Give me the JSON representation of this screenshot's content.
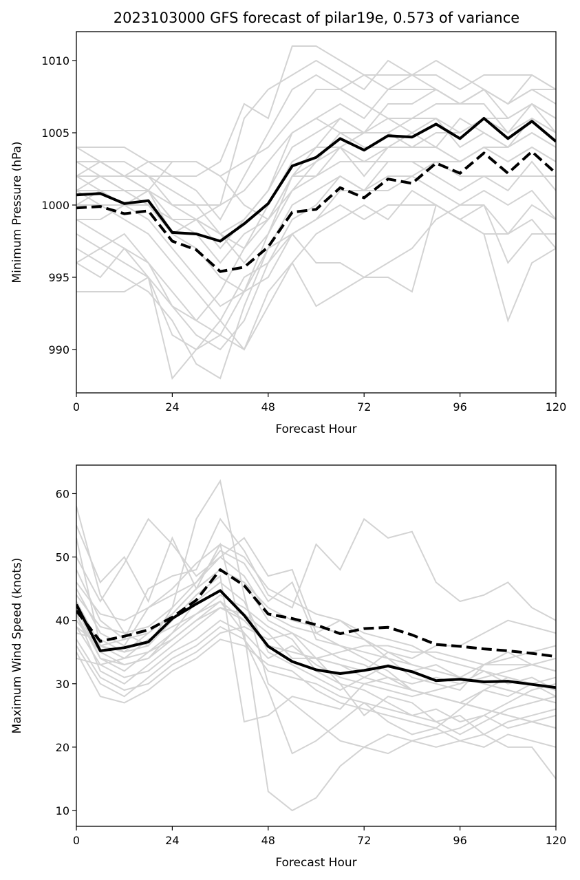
{
  "figure_title": "2023103000 GFS forecast of pilar19e, 0.573 of variance",
  "chart_data": [
    {
      "type": "line",
      "xlabel": "Forecast Hour",
      "ylabel": "Minimum Pressure (hPa)",
      "xlim": [
        0,
        120
      ],
      "ylim": [
        987,
        1012
      ],
      "xticks": [
        0,
        24,
        48,
        72,
        96,
        120
      ],
      "yticks": [
        990,
        995,
        1000,
        1005,
        1010
      ],
      "x": [
        0,
        6,
        12,
        18,
        24,
        30,
        36,
        42,
        48,
        54,
        60,
        66,
        72,
        78,
        84,
        90,
        96,
        102,
        108,
        114,
        120
      ],
      "highlight_series": [
        {
          "style": "solid",
          "color": "#000000",
          "values": [
            1000.7,
            1000.8,
            1000.1,
            1000.3,
            998.1,
            998.0,
            997.5,
            998.7,
            1000.1,
            1002.7,
            1003.3,
            1004.6,
            1003.8,
            1004.8,
            1004.7,
            1005.6,
            1004.6,
            1006.0,
            1004.6,
            1005.8,
            1004.4
          ]
        },
        {
          "style": "dashed",
          "color": "#000000",
          "values": [
            999.8,
            999.9,
            999.4,
            999.6,
            997.5,
            996.9,
            995.4,
            995.7,
            997.1,
            999.5,
            999.7,
            1001.2,
            1000.5,
            1001.8,
            1001.5,
            1002.9,
            1002.2,
            1003.6,
            1002.2,
            1003.7,
            1002.2
          ]
        }
      ],
      "member_color": "#d3d3d3",
      "members": [
        [
          1004,
          1004,
          1004,
          1003,
          1003,
          1003,
          1002,
          1003,
          1004,
          1006,
          1008,
          1008,
          1009,
          1009,
          1009,
          1009,
          1008,
          1009,
          1009,
          1009,
          1008
        ],
        [
          1003,
          1003,
          1002,
          1001,
          1000,
          999,
          997,
          999,
          1001,
          1005,
          1006,
          1007,
          1006,
          1008,
          1008,
          1008,
          1007,
          1008,
          1007,
          1008,
          1007
        ],
        [
          1002,
          1002,
          1001,
          1001,
          999,
          999,
          998,
          997,
          1000,
          1003,
          1004,
          1004,
          1005,
          1005,
          1006,
          1006,
          1005,
          1006,
          1006,
          1007,
          1006
        ],
        [
          1001,
          1000,
          1000,
          1001,
          999,
          998,
          996,
          998,
          999,
          1002,
          1002,
          1003,
          1003,
          1003,
          1003,
          1003,
          1002,
          1002,
          1002,
          1002,
          1002
        ],
        [
          1000,
          1001,
          1000,
          999,
          997,
          995,
          993,
          994,
          995,
          998,
          999,
          1001,
          1001,
          1002,
          1002,
          1003,
          1003,
          1004,
          1003,
          1004,
          1003
        ],
        [
          999,
          998,
          997,
          996,
          993,
          991,
          990,
          992,
          996,
          999,
          1000,
          1002,
          1001,
          1003,
          1003,
          1002,
          1001,
          1002,
          1001,
          1003,
          1001
        ],
        [
          998,
          997,
          998,
          996,
          994,
          992,
          991,
          994,
          997,
          998,
          999,
          1000,
          999,
          1000,
          1000,
          1000,
          999,
          998,
          998,
          999,
          997
        ],
        [
          996,
          995,
          997,
          995,
          991,
          990,
          991,
          990,
          994,
          996,
          993,
          994,
          995,
          995,
          994,
          1000,
          999,
          998,
          992,
          996,
          997
        ],
        [
          994,
          994,
          994,
          995,
          988,
          990,
          992,
          995,
          996,
          998,
          996,
          996,
          995,
          996,
          997,
          999,
          1000,
          1000,
          996,
          998,
          998
        ],
        [
          1002,
          1003,
          1002,
          1002,
          1000,
          1000,
          998,
          996,
          998,
          1001,
          1002,
          1004,
          1002,
          1004,
          1004,
          1004,
          1003,
          1004,
          1004,
          1005,
          1004
        ],
        [
          1003,
          1002,
          1002,
          1003,
          1002,
          1001,
          999,
          1002,
          1005,
          1008,
          1009,
          1008,
          1007,
          1006,
          1006,
          1007,
          1007,
          1008,
          1006,
          1007,
          1005
        ],
        [
          997,
          996,
          995,
          994,
          992,
          989,
          988,
          993,
          997,
          1000,
          1001,
          1002,
          1001,
          1001,
          1002,
          1001,
          1000,
          1001,
          1000,
          1001,
          999
        ],
        [
          1004,
          1003,
          1003,
          1002,
          1002,
          1002,
          1003,
          1007,
          1006,
          1011,
          1011,
          1010,
          1009,
          1008,
          1009,
          1008,
          1007,
          1008,
          1007,
          1008,
          1008
        ],
        [
          1001,
          1002,
          1002,
          1001,
          1003,
          1003,
          1002,
          1000,
          999,
          1001,
          1003,
          1005,
          1004,
          1004,
          1005,
          1004,
          1006,
          1005,
          1004,
          1006,
          1005
        ],
        [
          999,
          999,
          1000,
          1001,
          998,
          997,
          995,
          994,
          998,
          1002,
          1004,
          1006,
          1005,
          1007,
          1007,
          1008,
          1007,
          1007,
          1005,
          1007,
          1006
        ],
        [
          1000,
          1000,
          999,
          998,
          996,
          994,
          992,
          990,
          993,
          996,
          998,
          999,
          1000,
          999,
          1001,
          1000,
          999,
          1000,
          998,
          1000,
          999
        ],
        [
          1002,
          1001,
          1001,
          1000,
          999,
          999,
          998,
          999,
          1001,
          1004,
          1005,
          1006,
          1005,
          1006,
          1005,
          1006,
          1004,
          1005,
          1004,
          1005,
          1004
        ],
        [
          1003,
          1003,
          1002,
          1002,
          1001,
          1000,
          1000,
          1001,
          1003,
          1005,
          1006,
          1005,
          1005,
          1005,
          1004,
          1005,
          1005,
          1006,
          1005,
          1006,
          1005
        ],
        [
          996,
          997,
          996,
          995,
          993,
          992,
          994,
          997,
          999,
          1002,
          1003,
          1004,
          1003,
          1004,
          1004,
          1004,
          1003,
          1004,
          1003,
          1004,
          1003
        ],
        [
          1001,
          1001,
          1000,
          1000,
          998,
          999,
          1000,
          1006,
          1008,
          1009,
          1010,
          1009,
          1008,
          1010,
          1009,
          1010,
          1009,
          1008,
          1007,
          1009,
          1008
        ]
      ]
    },
    {
      "type": "line",
      "xlabel": "Forecast Hour",
      "ylabel": "Maximum Wind Speed (knots)",
      "xlim": [
        0,
        120
      ],
      "ylim": [
        7.5,
        64.5
      ],
      "xticks": [
        0,
        24,
        48,
        72,
        96,
        120
      ],
      "yticks": [
        10,
        20,
        30,
        40,
        50,
        60
      ],
      "x": [
        0,
        6,
        12,
        18,
        24,
        30,
        36,
        42,
        48,
        54,
        60,
        66,
        72,
        78,
        84,
        90,
        96,
        102,
        108,
        114,
        120
      ],
      "highlight_series": [
        {
          "style": "solid",
          "color": "#000000",
          "values": [
            42.5,
            35.2,
            35.7,
            36.6,
            40.3,
            42.6,
            44.7,
            40.8,
            35.9,
            33.5,
            32.2,
            31.6,
            32.1,
            32.8,
            31.9,
            30.5,
            30.7,
            30.3,
            30.4,
            29.9,
            29.4
          ]
        },
        {
          "style": "dashed",
          "color": "#000000",
          "values": [
            41.5,
            36.7,
            37.5,
            38.5,
            40.5,
            43.2,
            48.0,
            45.5,
            41.0,
            40.3,
            39.3,
            37.9,
            38.7,
            38.9,
            37.7,
            36.2,
            35.9,
            35.5,
            35.2,
            34.8,
            34.3
          ]
        }
      ],
      "member_color": "#d3d3d3",
      "members": [
        [
          58,
          44,
          38,
          36,
          42,
          56,
          62,
          44,
          30,
          27,
          24,
          21,
          20,
          22,
          21,
          20,
          21,
          22,
          24,
          25,
          26
        ],
        [
          55,
          46,
          50,
          43,
          53,
          45,
          52,
          37,
          29,
          19,
          21,
          24,
          27,
          24,
          22,
          23,
          26,
          29,
          28,
          30,
          31
        ],
        [
          50,
          43,
          49,
          56,
          52,
          47,
          50,
          53,
          47,
          48,
          38,
          40,
          37,
          34,
          31,
          30,
          29,
          33,
          35,
          33,
          32
        ],
        [
          48,
          40,
          37,
          45,
          47,
          48,
          56,
          51,
          44,
          42,
          52,
          48,
          56,
          53,
          54,
          46,
          43,
          44,
          46,
          42,
          40
        ],
        [
          45,
          38,
          36,
          42,
          44,
          46,
          51,
          49,
          43,
          46,
          37,
          36,
          34,
          32,
          29,
          28,
          27,
          26,
          25,
          24,
          23
        ],
        [
          43,
          36,
          34,
          37,
          39,
          41,
          44,
          42,
          39,
          37,
          32,
          30,
          29,
          27,
          25,
          24,
          22,
          24,
          26,
          27,
          28
        ],
        [
          42,
          34,
          32,
          35,
          38,
          43,
          46,
          43,
          35,
          33,
          31,
          29,
          31,
          33,
          32,
          33,
          31,
          33,
          34,
          35,
          36
        ],
        [
          41,
          32,
          30,
          33,
          36,
          39,
          42,
          40,
          36,
          35,
          34,
          33,
          32,
          35,
          34,
          36,
          36,
          38,
          40,
          39,
          38
        ],
        [
          40,
          35,
          33,
          34,
          38,
          41,
          43,
          38,
          13,
          10,
          12,
          17,
          20,
          19,
          21,
          22,
          23,
          25,
          27,
          29,
          30
        ],
        [
          39,
          33,
          31,
          32,
          35,
          37,
          40,
          38,
          34,
          36,
          33,
          31,
          30,
          31,
          29,
          28,
          27,
          29,
          31,
          30,
          28
        ],
        [
          38,
          37,
          35,
          36,
          40,
          44,
          47,
          24,
          25,
          28,
          27,
          26,
          30,
          29,
          28,
          29,
          30,
          31,
          32,
          33,
          34
        ],
        [
          37,
          31,
          29,
          30,
          33,
          35,
          38,
          39,
          37,
          38,
          36,
          34,
          33,
          31,
          30,
          31,
          30,
          32,
          30,
          31,
          29
        ],
        [
          36,
          30,
          28,
          31,
          34,
          36,
          39,
          37,
          32,
          31,
          30,
          28,
          27,
          26,
          25,
          26,
          24,
          25,
          23,
          24,
          25
        ],
        [
          35,
          28,
          27,
          29,
          32,
          34,
          37,
          36,
          33,
          32,
          29,
          27,
          26,
          25,
          24,
          23,
          21,
          20,
          22,
          21,
          20
        ],
        [
          34,
          33,
          34,
          35,
          37,
          40,
          42,
          41,
          38,
          34,
          34,
          35,
          36,
          36,
          35,
          35,
          34,
          33,
          33,
          33,
          32
        ],
        [
          39,
          36,
          37,
          38,
          41,
          45,
          48,
          46,
          42,
          40,
          39,
          38,
          37,
          35,
          33,
          32,
          31,
          30,
          29,
          28,
          27
        ],
        [
          46,
          41,
          40,
          42,
          45,
          49,
          52,
          50,
          45,
          43,
          41,
          40,
          38,
          37,
          36,
          34,
          33,
          32,
          31,
          30,
          29
        ],
        [
          41,
          34,
          33,
          34,
          37,
          40,
          43,
          40,
          36,
          35,
          34,
          33,
          31,
          30,
          29,
          28,
          27,
          26,
          25,
          24,
          23
        ],
        [
          44,
          39,
          38,
          39,
          42,
          46,
          50,
          47,
          41,
          39,
          38,
          36,
          35,
          34,
          33,
          32,
          31,
          30,
          29,
          28,
          27
        ],
        [
          53,
          36,
          35,
          38,
          41,
          45,
          48,
          46,
          40,
          38,
          34,
          30,
          25,
          28,
          27,
          24,
          25,
          22,
          20,
          20,
          15
        ]
      ]
    }
  ]
}
